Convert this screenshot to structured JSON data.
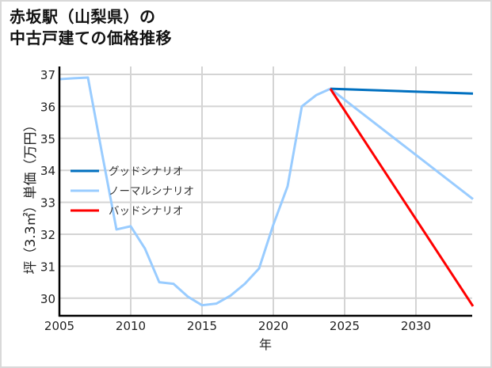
{
  "title_lines": [
    "赤坂駅（山梨県）の",
    "中古戸建ての価格推移"
  ],
  "chart_data": {
    "type": "line",
    "title": "赤坂駅（山梨県）の中古戸建ての価格推移",
    "xlabel": "年",
    "ylabel": "坪（3.3㎡）単価（万円）",
    "xlim": [
      2005,
      2034
    ],
    "ylim": [
      29.4,
      37.2
    ],
    "x_ticks": [
      2005,
      2010,
      2015,
      2020,
      2025,
      2030
    ],
    "y_ticks": [
      30,
      31,
      32,
      33,
      34,
      35,
      36,
      37
    ],
    "grid": true,
    "legend_position": "center-left",
    "series": [
      {
        "name": "グッドシナリオ",
        "color": "#0070c0",
        "x": [
          2024,
          2034
        ],
        "values": [
          36.55,
          36.4
        ]
      },
      {
        "name": "ノーマルシナリオ",
        "color": "#99ccff",
        "x": [
          2005,
          2006,
          2007,
          2008,
          2009,
          2010,
          2011,
          2012,
          2013,
          2014,
          2015,
          2016,
          2017,
          2018,
          2019,
          2020,
          2021,
          2022,
          2023,
          2024,
          2034
        ],
        "values": [
          36.85,
          36.88,
          36.9,
          34.5,
          32.15,
          32.25,
          31.55,
          30.5,
          30.45,
          30.05,
          29.78,
          29.83,
          30.08,
          30.45,
          30.93,
          32.3,
          33.5,
          36.0,
          36.35,
          36.55,
          33.1
        ]
      },
      {
        "name": "バッドシナリオ",
        "color": "#ff0000",
        "x": [
          2024,
          2034
        ],
        "values": [
          36.55,
          29.75
        ]
      }
    ]
  }
}
